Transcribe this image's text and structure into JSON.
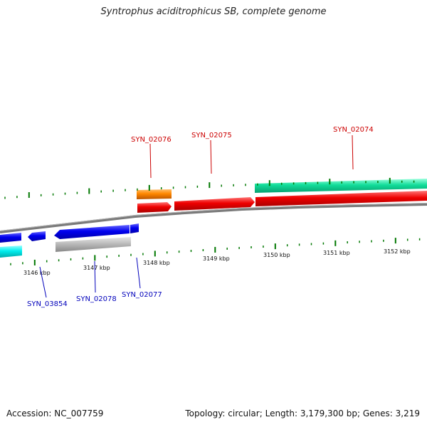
{
  "title": "Syntrophus aciditrophicus SB, complete genome",
  "footer": {
    "accession_label": "Accession:",
    "accession": "NC_007759",
    "topology_label": "Topology:",
    "topology": "circular",
    "length_label": "Length:",
    "length": "3,179,300 bp",
    "genes_label": "Genes:",
    "genes": "3,219"
  },
  "colors": {
    "forward_label": "#cc0000",
    "reverse_label": "#0000bb",
    "tick": "#007700",
    "backbone": "#777777",
    "red_feature": "#ee0000",
    "orange_feature": "#ff8800",
    "teal_feature": "#11dd99",
    "blue_feature": "#0000ee",
    "cyan_feature": "#00eeee",
    "grey_feature": "#bbbbbb"
  },
  "scale_labels": [
    "3146 kbp",
    "3147 kbp",
    "3148 kbp",
    "3149 kbp",
    "3150 kbp",
    "3151 kbp",
    "3152 kbp"
  ],
  "forward_gene_labels": [
    "SYN_02076",
    "SYN_02075",
    "SYN_02074"
  ],
  "reverse_gene_labels": [
    "SYN_03854",
    "SYN_02078",
    "SYN_02077"
  ]
}
